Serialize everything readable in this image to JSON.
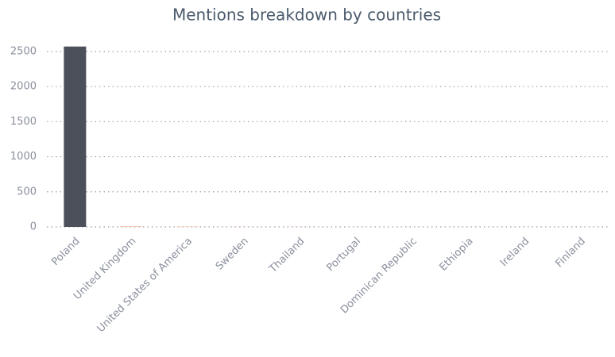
{
  "chart_data": {
    "type": "bar",
    "title": "Mentions breakdown by countries",
    "categories": [
      "Poland",
      "United Kingdom",
      "United States of America",
      "Sweden",
      "Thailand",
      "Portugal",
      "Dominican Republic",
      "Ethiopia",
      "Ireland",
      "Finland"
    ],
    "values": [
      2570,
      8,
      5,
      2,
      2,
      1,
      1,
      1,
      1,
      1
    ],
    "colors": [
      "#4b505b",
      "#f2b8a0",
      "#f2b8a0",
      "#f2b8a0",
      "#f2b8a0",
      "#f2b8a0",
      "#f2b8a0",
      "#f2b8a0",
      "#f2b8a0",
      "#f2b8a0"
    ],
    "ylim": [
      0,
      2600
    ],
    "yticks": [
      0,
      500,
      1000,
      1500,
      2000,
      2500
    ],
    "grid": true
  }
}
